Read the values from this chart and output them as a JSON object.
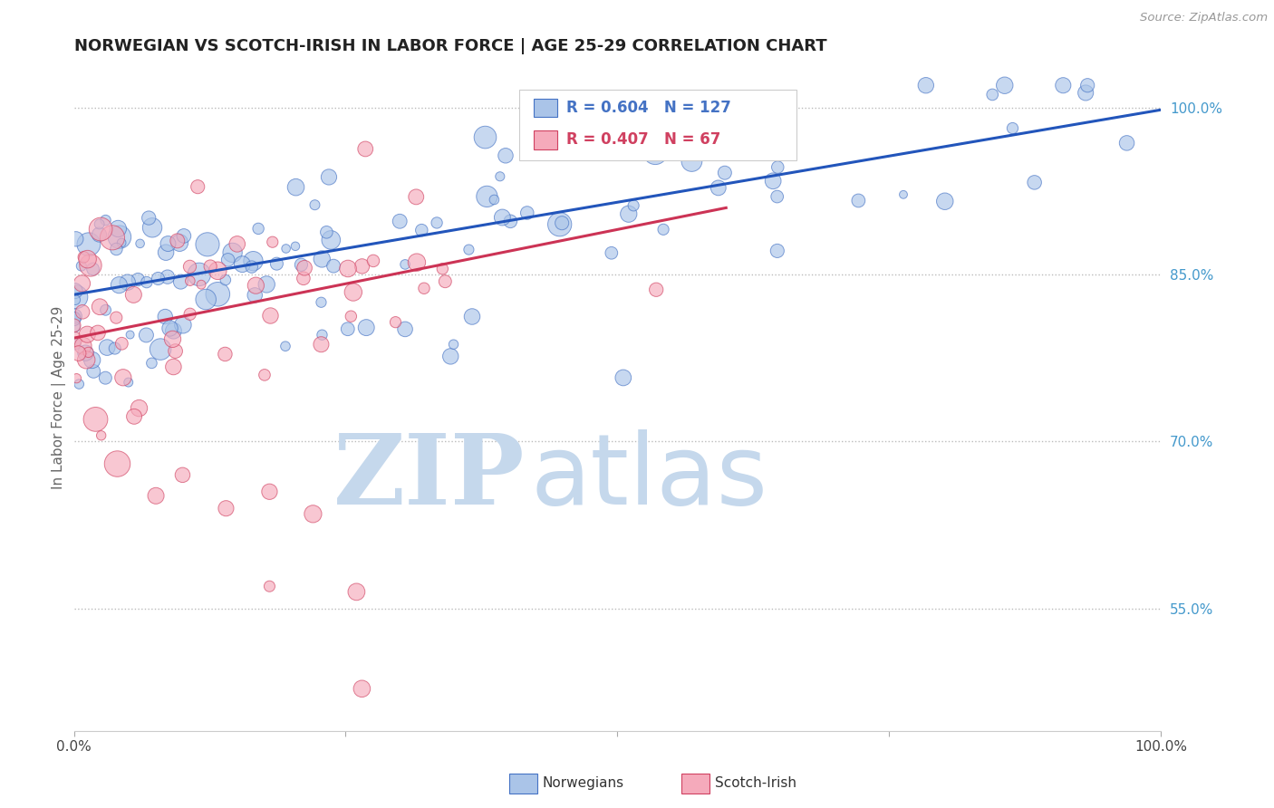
{
  "title": "NORWEGIAN VS SCOTCH-IRISH IN LABOR FORCE | AGE 25-29 CORRELATION CHART",
  "source": "Source: ZipAtlas.com",
  "ylabel": "In Labor Force | Age 25-29",
  "xlim": [
    0.0,
    1.0
  ],
  "ylim": [
    0.44,
    1.04
  ],
  "x_ticks": [
    0.0,
    0.25,
    0.5,
    0.75,
    1.0
  ],
  "x_tick_labels": [
    "0.0%",
    "",
    "",
    "",
    "100.0%"
  ],
  "y_ticks_right": [
    0.55,
    0.7,
    0.85,
    1.0
  ],
  "y_tick_labels_right": [
    "55.0%",
    "70.0%",
    "85.0%",
    "100.0%"
  ],
  "norwegian_fill": "#aac4e8",
  "norwegian_edge": "#4472c4",
  "scotch_fill": "#f5aabb",
  "scotch_edge": "#d04060",
  "trend_nor_color": "#2255bb",
  "trend_si_color": "#cc3355",
  "R_norwegian": 0.604,
  "N_norwegian": 127,
  "R_scotch_irish": 0.407,
  "N_scotch_irish": 67,
  "watermark_zip_color": "#c5d8ec",
  "watermark_atlas_color": "#c5d8ec",
  "background_color": "#ffffff",
  "grid_color": "#bbbbbb",
  "title_color": "#222222",
  "right_label_color": "#4499cc",
  "legend_border_color": "#cccccc",
  "trend_nor_y0": 0.832,
  "trend_nor_y1": 0.998,
  "trend_si_y0": 0.793,
  "trend_si_y1": 0.91
}
